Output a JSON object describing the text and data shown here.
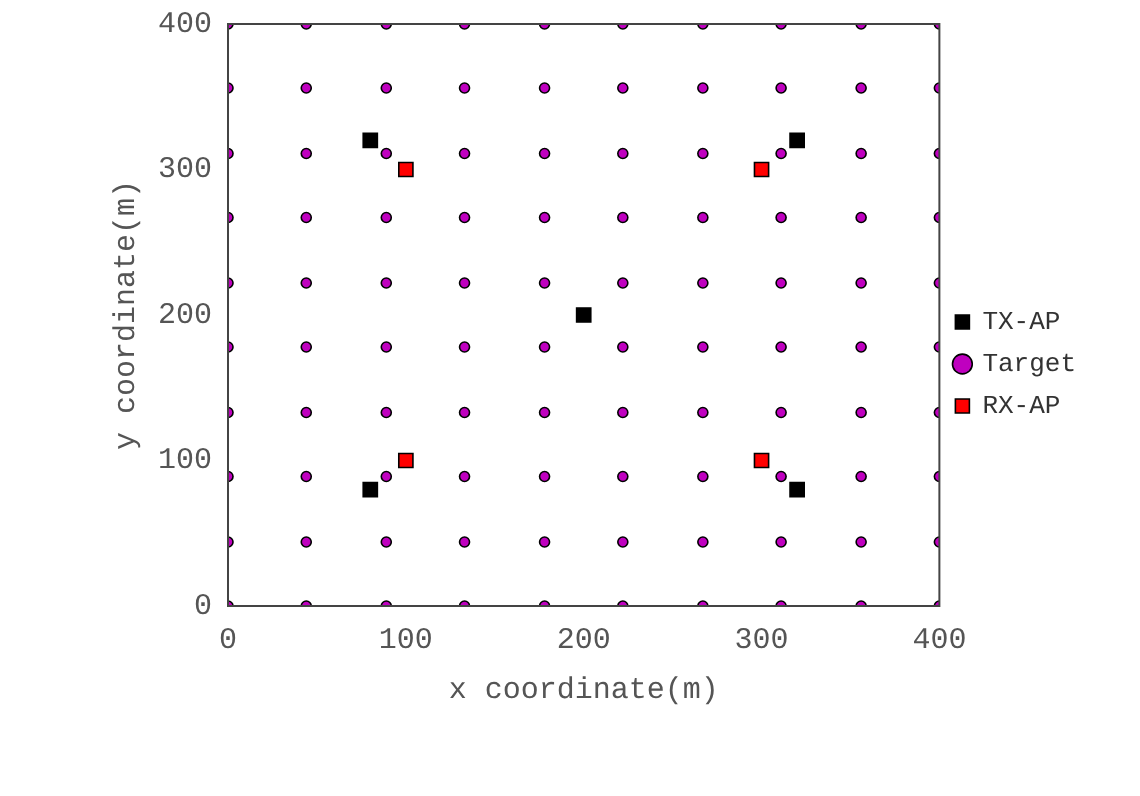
{
  "chart_data": {
    "type": "scatter",
    "xlabel": "x coordinate(m)",
    "ylabel": "y coordinate(m)",
    "xlim": [
      0,
      400
    ],
    "ylim": [
      0,
      400
    ],
    "xticks": [
      0,
      100,
      200,
      300,
      400
    ],
    "yticks": [
      0,
      100,
      200,
      300,
      400
    ],
    "grid": false,
    "legend": "right",
    "series": [
      {
        "name": "TX-AP",
        "color": "#000000",
        "marker": "square",
        "x": [
          80,
          320,
          200,
          80,
          320
        ],
        "values": [
          320,
          320,
          200,
          80,
          80
        ]
      },
      {
        "name": "Target",
        "color": "#bf00bf",
        "marker": "circle",
        "x": [
          0,
          44,
          89,
          133,
          178,
          222,
          267,
          311,
          356,
          400,
          0,
          44,
          89,
          133,
          178,
          222,
          267,
          311,
          356,
          400,
          0,
          44,
          89,
          133,
          178,
          222,
          267,
          311,
          356,
          400,
          0,
          44,
          89,
          133,
          178,
          222,
          267,
          311,
          356,
          400,
          0,
          44,
          89,
          133,
          178,
          222,
          267,
          311,
          356,
          400,
          0,
          44,
          89,
          133,
          178,
          222,
          267,
          311,
          356,
          400,
          0,
          44,
          89,
          133,
          178,
          222,
          267,
          311,
          356,
          400,
          0,
          44,
          89,
          133,
          178,
          222,
          267,
          311,
          356,
          400,
          0,
          44,
          89,
          133,
          178,
          222,
          267,
          311,
          356,
          400,
          0,
          44,
          89,
          133,
          178,
          222,
          267,
          311,
          356,
          400
        ],
        "values": [
          0,
          0,
          0,
          0,
          0,
          0,
          0,
          0,
          0,
          0,
          44,
          44,
          44,
          44,
          44,
          44,
          44,
          44,
          44,
          44,
          89,
          89,
          89,
          89,
          89,
          89,
          89,
          89,
          89,
          89,
          133,
          133,
          133,
          133,
          133,
          133,
          133,
          133,
          133,
          133,
          178,
          178,
          178,
          178,
          178,
          178,
          178,
          178,
          178,
          178,
          222,
          222,
          222,
          222,
          222,
          222,
          222,
          222,
          222,
          222,
          267,
          267,
          267,
          267,
          267,
          267,
          267,
          267,
          267,
          267,
          311,
          311,
          311,
          311,
          311,
          311,
          311,
          311,
          311,
          311,
          356,
          356,
          356,
          356,
          356,
          356,
          356,
          356,
          356,
          356,
          400,
          400,
          400,
          400,
          400,
          400,
          400,
          400,
          400,
          400
        ]
      },
      {
        "name": "RX-AP",
        "color": "#ff0000",
        "marker": "square",
        "x": [
          100,
          300,
          100,
          300
        ],
        "values": [
          300,
          300,
          100,
          100
        ]
      }
    ]
  }
}
